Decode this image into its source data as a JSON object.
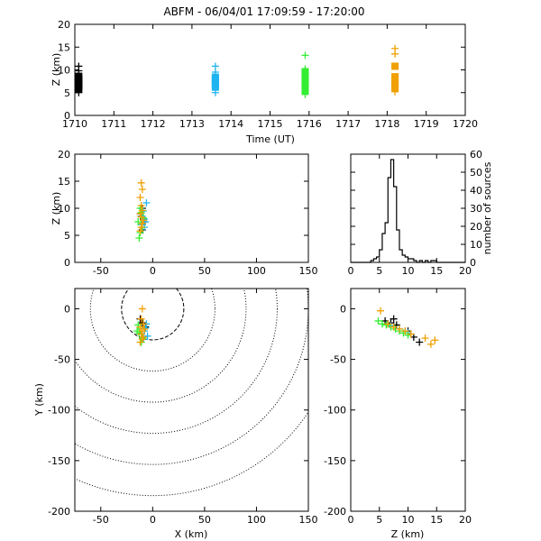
{
  "title": "ABFM - 06/04/01 17:09:59 - 17:20:00",
  "colors": {
    "black_group": "#000000",
    "cyan_group": "#1fb4f0",
    "green_group": "#33ee33",
    "orange_group": "#f0a000",
    "range_rings": "#000000"
  },
  "chart_data": [
    {
      "type": "scatter",
      "panel": "time-height",
      "xlabel": "Time (UT)",
      "ylabel": "Z (km)",
      "xlim": [
        1710,
        1720
      ],
      "ylim": [
        0,
        20
      ],
      "xticks": [
        1710,
        1711,
        1712,
        1713,
        1714,
        1715,
        1716,
        1717,
        1718,
        1719,
        1720
      ],
      "yticks": [
        0,
        5,
        10,
        15,
        20
      ],
      "series": [
        {
          "color": "black_group",
          "x": [
            1710.1,
            1710.1,
            1710.1,
            1710.1,
            1710.1,
            1710.1,
            1710.1,
            1710.1,
            1710.1,
            1710.1
          ],
          "y": [
            5.0,
            5.8,
            6.3,
            6.8,
            7.2,
            7.6,
            8.0,
            8.6,
            9.8,
            10.8
          ]
        },
        {
          "color": "cyan_group",
          "x": [
            1713.6,
            1713.6,
            1713.6,
            1713.6,
            1713.6,
            1713.6,
            1713.6,
            1713.6,
            1713.6
          ],
          "y": [
            5.0,
            6.2,
            6.8,
            7.2,
            7.6,
            8.0,
            8.4,
            9.5,
            10.8
          ]
        },
        {
          "color": "green_group",
          "x": [
            1715.9,
            1715.9,
            1715.9,
            1715.9,
            1715.9,
            1715.9,
            1715.9,
            1715.9,
            1715.9,
            1715.9,
            1715.9
          ],
          "y": [
            4.6,
            5.4,
            6.4,
            7.0,
            7.5,
            8.0,
            8.5,
            9.0,
            9.6,
            10.2,
            13.2
          ]
        },
        {
          "color": "orange_group",
          "x": [
            1718.2,
            1718.2,
            1718.2,
            1718.2,
            1718.2,
            1718.2,
            1718.2,
            1718.2,
            1718.2,
            1718.2
          ],
          "y": [
            5.2,
            6.0,
            6.6,
            7.0,
            7.5,
            8.0,
            8.5,
            10.8,
            13.5,
            14.7
          ]
        }
      ]
    },
    {
      "type": "scatter",
      "panel": "x-z",
      "xlabel": "",
      "ylabel": "Z (km)",
      "xlim": [
        -75,
        150
      ],
      "ylim": [
        0,
        20
      ],
      "xticks": [
        -50,
        0,
        50,
        100,
        150
      ],
      "yticks": [
        0,
        5,
        10,
        15,
        20
      ],
      "series": [
        {
          "color": "black_group",
          "x": [
            -10,
            -11,
            -9,
            -12,
            -10,
            -8,
            -11
          ],
          "y": [
            6.0,
            7.0,
            8.0,
            9.0,
            10.0,
            7.5,
            8.5
          ]
        },
        {
          "color": "cyan_group",
          "x": [
            -8,
            -7,
            -10,
            -9,
            -6,
            -11,
            -8
          ],
          "y": [
            6.5,
            7.5,
            8.5,
            9.5,
            11.0,
            7.0,
            8.0
          ]
        },
        {
          "color": "green_group",
          "x": [
            -13,
            -12,
            -10,
            -14,
            -9,
            -11,
            -12
          ],
          "y": [
            4.5,
            5.5,
            6.5,
            7.5,
            8.2,
            9.2,
            10.0
          ]
        },
        {
          "color": "orange_group",
          "x": [
            -12,
            -11,
            -10,
            -9,
            -11,
            -12,
            -10,
            -11,
            -12,
            -10,
            -11
          ],
          "y": [
            5.8,
            6.5,
            7.2,
            7.8,
            8.4,
            9.0,
            9.6,
            10.5,
            12.0,
            13.5,
            14.7
          ]
        }
      ]
    },
    {
      "type": "bar",
      "panel": "histogram",
      "xlabel": "",
      "ylabel": "number of sources",
      "xlim": [
        0,
        20
      ],
      "ylim": [
        0,
        60
      ],
      "xticks": [
        0,
        5,
        10,
        15,
        20
      ],
      "yticks": [
        0,
        10,
        20,
        30,
        40,
        50,
        60
      ],
      "bin_width": 0.5,
      "bin_starts": [
        3.5,
        4.0,
        4.5,
        5.0,
        5.5,
        6.0,
        6.5,
        7.0,
        7.5,
        8.0,
        8.5,
        9.0,
        9.5,
        10.0,
        10.5,
        11.0,
        11.5,
        12.0,
        12.5,
        13.0,
        13.5,
        14.0,
        14.5,
        15.0
      ],
      "values": [
        1,
        2,
        3,
        7,
        16,
        22,
        47,
        57,
        42,
        18,
        7,
        4,
        3,
        2,
        2,
        1,
        0,
        1,
        0,
        1,
        0,
        1,
        1,
        0
      ]
    },
    {
      "type": "scatter",
      "panel": "plan-view",
      "xlabel": "X (km)",
      "ylabel": "Y (km)",
      "xlim": [
        -75,
        150
      ],
      "ylim": [
        -200,
        20
      ],
      "xticks": [
        -50,
        0,
        50,
        100,
        150
      ],
      "yticks": [
        -200,
        -150,
        -100,
        -50,
        0
      ],
      "range_rings_km": [
        30,
        60,
        90,
        120,
        150,
        180
      ],
      "series": [
        {
          "color": "black_group",
          "x": [
            -12,
            -10,
            -8,
            -11,
            -9,
            -7
          ],
          "y": [
            -10,
            -14,
            -20,
            -25,
            -30,
            -18
          ]
        },
        {
          "color": "cyan_group",
          "x": [
            -6,
            -8,
            -5,
            -9,
            -7
          ],
          "y": [
            -15,
            -22,
            -27,
            -30,
            -19
          ]
        },
        {
          "color": "green_group",
          "x": [
            -14,
            -12,
            -13,
            -10,
            -11,
            -15
          ],
          "y": [
            -16,
            -20,
            -24,
            -29,
            -33,
            -22
          ]
        },
        {
          "color": "orange_group",
          "x": [
            -10,
            -11,
            -9,
            -12,
            -10,
            -11,
            -9,
            -10,
            -12,
            -8
          ],
          "y": [
            0,
            -10,
            -15,
            -18,
            -22,
            -25,
            -28,
            -30,
            -33,
            -20
          ]
        }
      ]
    },
    {
      "type": "scatter",
      "panel": "z-y",
      "xlabel": "Z (km)",
      "ylabel": "",
      "xlim": [
        0,
        20
      ],
      "ylim": [
        -200,
        20
      ],
      "xticks": [
        0,
        5,
        10,
        15,
        20
      ],
      "yticks": [
        -200,
        -150,
        -100,
        -50,
        0
      ],
      "series": [
        {
          "color": "black_group",
          "x": [
            6,
            7,
            8,
            10,
            11,
            12,
            7.5
          ],
          "y": [
            -12,
            -14,
            -16,
            -22,
            -28,
            -33,
            -10
          ]
        },
        {
          "color": "cyan_group",
          "x": [
            6.5,
            7.5,
            8.5,
            9.5,
            10,
            7
          ],
          "y": [
            -15,
            -18,
            -20,
            -22,
            -24,
            -17
          ]
        },
        {
          "color": "green_group",
          "x": [
            4.8,
            5.5,
            6.2,
            7,
            7.8,
            8.5,
            9.2,
            10
          ],
          "y": [
            -12,
            -15,
            -16,
            -18,
            -20,
            -22,
            -24,
            -26
          ]
        },
        {
          "color": "orange_group",
          "x": [
            5.2,
            6.5,
            7.5,
            8.5,
            9.5,
            10.5,
            13,
            14,
            14.7
          ],
          "y": [
            -2,
            -15,
            -18,
            -20,
            -22,
            -25,
            -29,
            -35,
            -31
          ]
        }
      ]
    }
  ]
}
